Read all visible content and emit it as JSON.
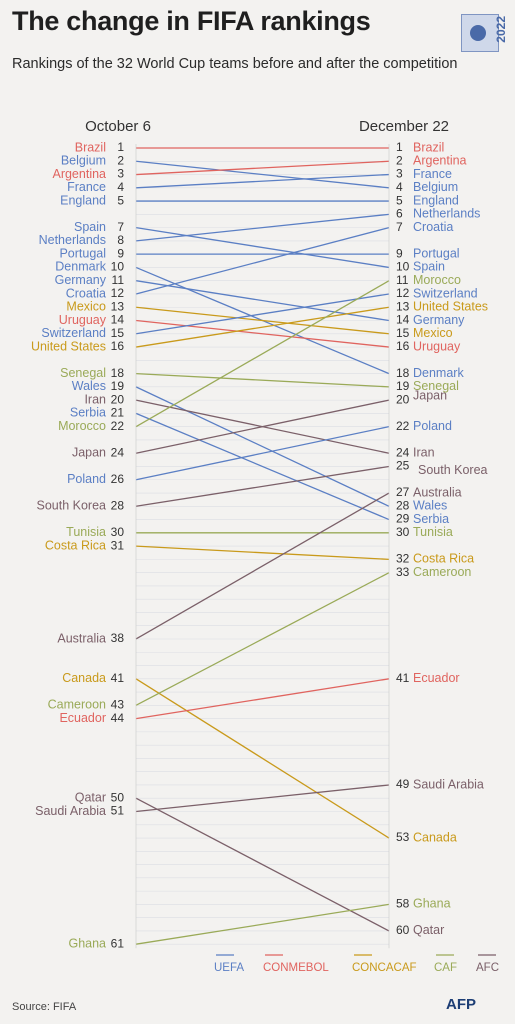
{
  "header": {
    "title": "The change in FIFA rankings",
    "subtitle": "Rankings of the 32 World Cup teams before and after the competition",
    "logo_year": "2022"
  },
  "footer": {
    "source": "Source: FIFA",
    "brand": "AFP"
  },
  "chart_data": {
    "type": "slope",
    "left_label": "October 6",
    "right_label": "December 22",
    "rank_range": [
      1,
      61
    ],
    "legend": [
      {
        "name": "UEFA",
        "color": "#5b7fc4"
      },
      {
        "name": "CONMEBOL",
        "color": "#e0645f"
      },
      {
        "name": "CONCACAF",
        "color": "#c99a1b"
      },
      {
        "name": "CAF",
        "color": "#9aaa58"
      },
      {
        "name": "AFC",
        "color": "#7b6069"
      }
    ],
    "teams": [
      {
        "name": "Brazil",
        "conf": "CONMEBOL",
        "before": 1,
        "after": 1
      },
      {
        "name": "Belgium",
        "conf": "UEFA",
        "before": 2,
        "after": 4
      },
      {
        "name": "Argentina",
        "conf": "CONMEBOL",
        "before": 3,
        "after": 2
      },
      {
        "name": "France",
        "conf": "UEFA",
        "before": 4,
        "after": 3
      },
      {
        "name": "England",
        "conf": "UEFA",
        "before": 5,
        "after": 5
      },
      {
        "name": "Spain",
        "conf": "UEFA",
        "before": 7,
        "after": 10
      },
      {
        "name": "Netherlands",
        "conf": "UEFA",
        "before": 8,
        "after": 6
      },
      {
        "name": "Portugal",
        "conf": "UEFA",
        "before": 9,
        "after": 9
      },
      {
        "name": "Denmark",
        "conf": "UEFA",
        "before": 10,
        "after": 18
      },
      {
        "name": "Germany",
        "conf": "UEFA",
        "before": 11,
        "after": 14
      },
      {
        "name": "Croatia",
        "conf": "UEFA",
        "before": 12,
        "after": 7
      },
      {
        "name": "Mexico",
        "conf": "CONCACAF",
        "before": 13,
        "after": 15
      },
      {
        "name": "Uruguay",
        "conf": "CONMEBOL",
        "before": 14,
        "after": 16
      },
      {
        "name": "Switzerland",
        "conf": "UEFA",
        "before": 15,
        "after": 12
      },
      {
        "name": "United States",
        "conf": "CONCACAF",
        "before": 16,
        "after": 13
      },
      {
        "name": "Senegal",
        "conf": "CAF",
        "before": 18,
        "after": 19
      },
      {
        "name": "Wales",
        "conf": "UEFA",
        "before": 19,
        "after": 28
      },
      {
        "name": "Iran",
        "conf": "AFC",
        "before": 20,
        "after": 24
      },
      {
        "name": "Serbia",
        "conf": "UEFA",
        "before": 21,
        "after": 29
      },
      {
        "name": "Morocco",
        "conf": "CAF",
        "before": 22,
        "after": 11
      },
      {
        "name": "Japan",
        "conf": "AFC",
        "before": 24,
        "after": 20
      },
      {
        "name": "Poland",
        "conf": "UEFA",
        "before": 26,
        "after": 22
      },
      {
        "name": "South Korea",
        "conf": "AFC",
        "before": 28,
        "after": 25
      },
      {
        "name": "Tunisia",
        "conf": "CAF",
        "before": 30,
        "after": 30
      },
      {
        "name": "Costa Rica",
        "conf": "CONCACAF",
        "before": 31,
        "after": 32
      },
      {
        "name": "Australia",
        "conf": "AFC",
        "before": 38,
        "after": 27
      },
      {
        "name": "Canada",
        "conf": "CONCACAF",
        "before": 41,
        "after": 53
      },
      {
        "name": "Cameroon",
        "conf": "CAF",
        "before": 43,
        "after": 33
      },
      {
        "name": "Ecuador",
        "conf": "CONMEBOL",
        "before": 44,
        "after": 41
      },
      {
        "name": "Qatar",
        "conf": "AFC",
        "before": 50,
        "after": 60
      },
      {
        "name": "Saudi Arabia",
        "conf": "AFC",
        "before": 51,
        "after": 49
      },
      {
        "name": "Ghana",
        "conf": "CAF",
        "before": 61,
        "after": 58
      }
    ]
  }
}
